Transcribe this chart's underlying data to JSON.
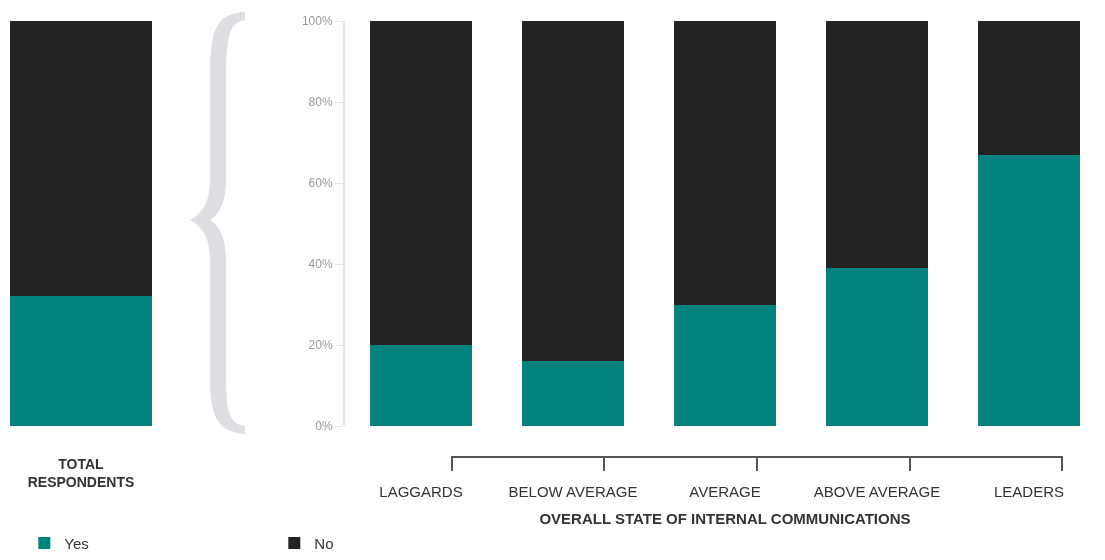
{
  "chart_data": [
    {
      "type": "bar",
      "categories": [
        "TOTAL RESPONDENTS"
      ],
      "stacked": true,
      "ylim": [
        0,
        100
      ],
      "tick_labels": "x",
      "series": [
        {
          "color": "#00837f",
          "values": [
            32
          ]
        },
        {
          "color": "#232323",
          "values": [
            68
          ]
        }
      ]
    },
    {
      "type": "bar",
      "categories": [
        "LAGGARDS",
        "BELOW AVERAGE",
        "AVERAGE",
        "ABOVE AVERAGE",
        "LEADERS"
      ],
      "stacked": true,
      "xlabel": "OVERALL STATE OF INTERNAL COMMUNICATIONS",
      "ylim": [
        0,
        100
      ],
      "yticks": [
        {
          "value": 0,
          "label": "0%"
        },
        {
          "value": 20,
          "label": "20%"
        },
        {
          "value": 40,
          "label": "40%"
        },
        {
          "value": 60,
          "label": "60%"
        },
        {
          "value": 80,
          "label": "80%"
        },
        {
          "value": 100,
          "label": "100%"
        }
      ],
      "legend": "bottom left",
      "series": [
        {
          "name": "Yes",
          "color": "#00837f",
          "values": [
            20,
            16,
            30,
            39,
            67
          ]
        },
        {
          "name": "No",
          "color": "#232323",
          "values": [
            80,
            84,
            70,
            61,
            33
          ]
        }
      ]
    }
  ]
}
